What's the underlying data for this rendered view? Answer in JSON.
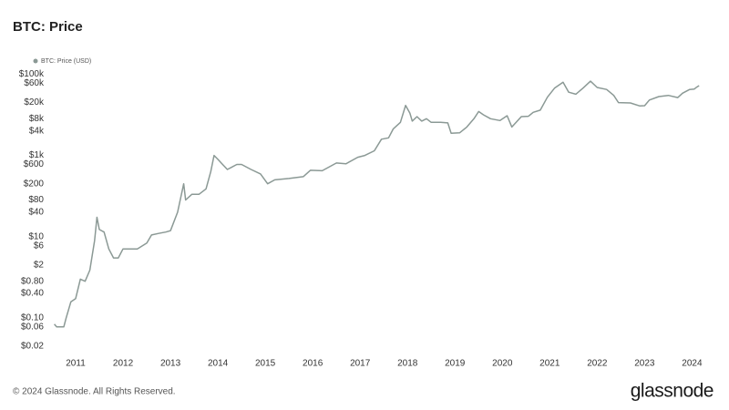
{
  "chart_data": {
    "type": "line",
    "title": "BTC: Price",
    "footer": "© 2024 Glassnode. All Rights Reserved.",
    "brand": "glassnode",
    "log_scale": true,
    "grid": false,
    "x": [
      2010.55,
      2010.6,
      2010.75,
      2010.8,
      2010.9,
      2011.0,
      2011.1,
      2011.2,
      2011.3,
      2011.4,
      2011.45,
      2011.5,
      2011.6,
      2011.7,
      2011.8,
      2011.9,
      2012.0,
      2012.1,
      2012.3,
      2012.5,
      2012.6,
      2012.75,
      2012.9,
      2013.0,
      2013.15,
      2013.28,
      2013.32,
      2013.45,
      2013.6,
      2013.75,
      2013.85,
      2013.92,
      2014.0,
      2014.1,
      2014.2,
      2014.4,
      2014.5,
      2014.7,
      2014.9,
      2015.05,
      2015.2,
      2015.5,
      2015.8,
      2015.95,
      2016.2,
      2016.5,
      2016.7,
      2016.95,
      2017.1,
      2017.3,
      2017.45,
      2017.6,
      2017.7,
      2017.85,
      2017.96,
      2018.05,
      2018.1,
      2018.2,
      2018.3,
      2018.4,
      2018.5,
      2018.7,
      2018.85,
      2018.92,
      2019.1,
      2019.25,
      2019.4,
      2019.5,
      2019.6,
      2019.75,
      2019.95,
      2020.1,
      2020.2,
      2020.4,
      2020.55,
      2020.65,
      2020.8,
      2020.95,
      2021.1,
      2021.28,
      2021.4,
      2021.55,
      2021.7,
      2021.86,
      2022.0,
      2022.2,
      2022.35,
      2022.45,
      2022.7,
      2022.9,
      2023.0,
      2023.1,
      2023.3,
      2023.5,
      2023.7,
      2023.8,
      2023.95,
      2024.05,
      2024.1,
      2024.15
    ],
    "series": [
      {
        "name": "BTC: Price (USD)",
        "color": "#8b9995",
        "values": [
          0.07,
          0.06,
          0.06,
          0.1,
          0.25,
          0.3,
          0.9,
          0.8,
          1.5,
          8,
          30,
          15,
          13,
          5,
          3,
          3,
          5,
          5,
          5,
          7,
          11,
          12,
          13,
          14,
          40,
          200,
          80,
          110,
          110,
          150,
          400,
          1000,
          800,
          600,
          450,
          600,
          600,
          450,
          350,
          200,
          250,
          270,
          300,
          430,
          420,
          650,
          620,
          900,
          1000,
          1300,
          2500,
          2700,
          4500,
          6500,
          17000,
          11000,
          7000,
          9000,
          7000,
          8000,
          6500,
          6500,
          6300,
          3500,
          3600,
          5000,
          8000,
          12000,
          10000,
          8000,
          7200,
          9500,
          5000,
          9000,
          9200,
          11500,
          13000,
          27000,
          45000,
          63000,
          36000,
          32000,
          45000,
          67000,
          47000,
          42000,
          30000,
          20000,
          19500,
          16500,
          16700,
          23000,
          28000,
          30000,
          26500,
          34000,
          42000,
          43000,
          48000,
          52000
        ]
      }
    ],
    "xlim": [
      2010.5,
      2024.3
    ],
    "xticks": [
      2011,
      2012,
      2013,
      2014,
      2015,
      2016,
      2017,
      2018,
      2019,
      2020,
      2021,
      2022,
      2023,
      2024
    ],
    "ylim": [
      0.012,
      180000
    ],
    "yticks": [
      {
        "value": 0.02,
        "label": "$0.02"
      },
      {
        "value": 0.06,
        "label": "$0.06"
      },
      {
        "value": 0.1,
        "label": "$0.10"
      },
      {
        "value": 0.4,
        "label": "$0.40"
      },
      {
        "value": 0.8,
        "label": "$0.80"
      },
      {
        "value": 2,
        "label": "$2"
      },
      {
        "value": 6,
        "label": "$6"
      },
      {
        "value": 10,
        "label": "$10"
      },
      {
        "value": 40,
        "label": "$40"
      },
      {
        "value": 80,
        "label": "$80"
      },
      {
        "value": 200,
        "label": "$200"
      },
      {
        "value": 600,
        "label": "$600"
      },
      {
        "value": 1000,
        "label": "$1k"
      },
      {
        "value": 4000,
        "label": "$4k"
      },
      {
        "value": 8000,
        "label": "$8k"
      },
      {
        "value": 20000,
        "label": "$20k"
      },
      {
        "value": 60000,
        "label": "$60k"
      },
      {
        "value": 100000,
        "label": "$100k"
      }
    ]
  }
}
